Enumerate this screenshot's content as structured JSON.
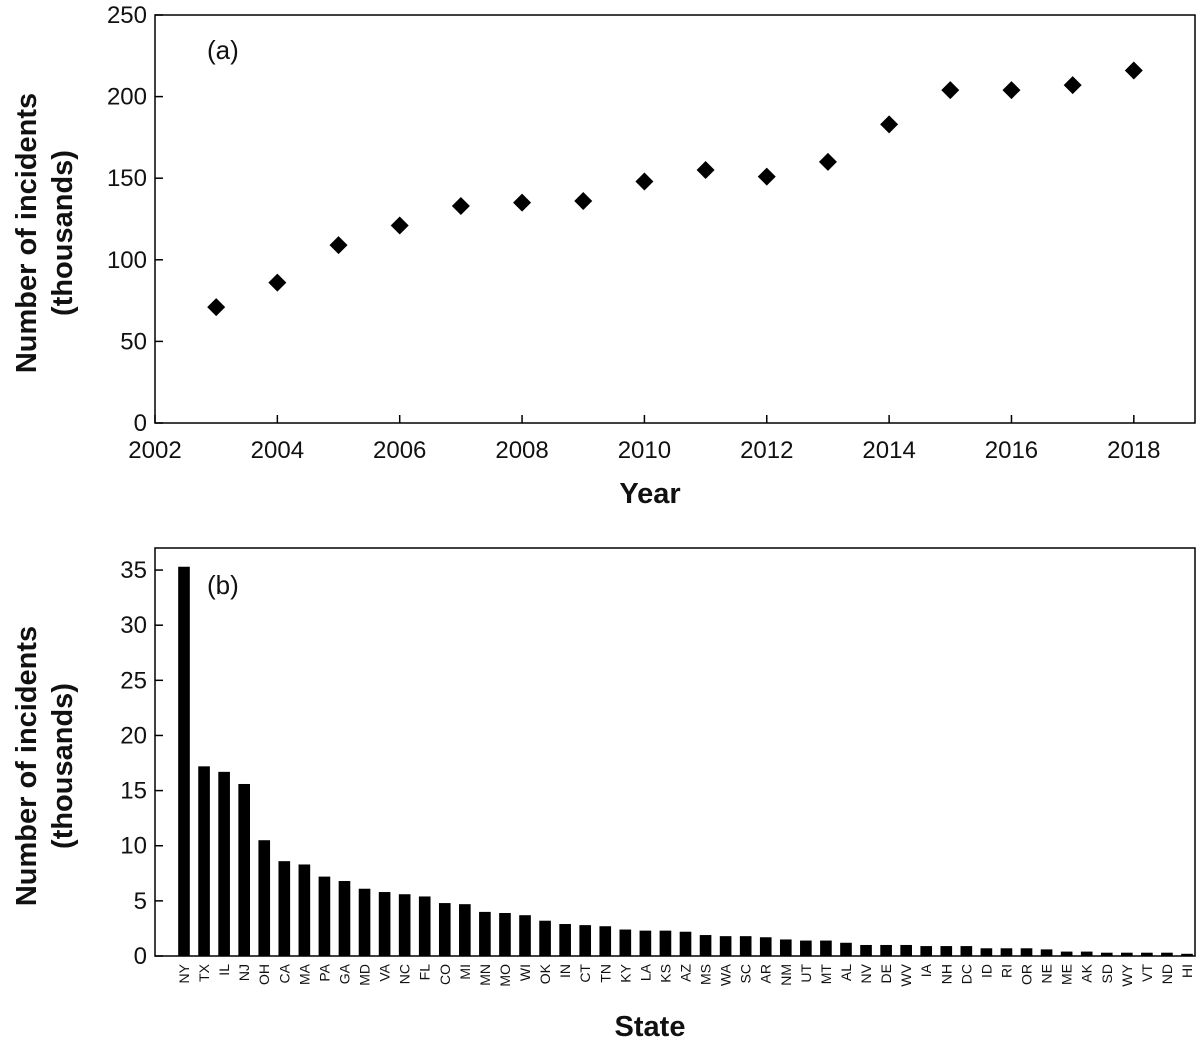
{
  "chart_data": [
    {
      "type": "scatter",
      "panel_label": "(a)",
      "xlabel": "Year",
      "ylabel": [
        "Number of incidents",
        "(thousands)"
      ],
      "xlim": [
        2002,
        2019
      ],
      "ylim": [
        0,
        250
      ],
      "xticks": [
        2002,
        2004,
        2006,
        2008,
        2010,
        2012,
        2014,
        2016,
        2018
      ],
      "yticks": [
        0,
        50,
        100,
        150,
        200,
        250
      ],
      "marker": "diamond",
      "color": "#000000",
      "grid": false,
      "x": [
        2003,
        2004,
        2005,
        2006,
        2007,
        2008,
        2009,
        2010,
        2011,
        2012,
        2013,
        2014,
        2015,
        2016,
        2017,
        2018
      ],
      "y": [
        71,
        86,
        109,
        121,
        133,
        135,
        136,
        148,
        155,
        151,
        160,
        183,
        204,
        204,
        207,
        216
      ]
    },
    {
      "type": "bar",
      "panel_label": "(b)",
      "xlabel": "State",
      "ylabel": [
        "Number of incidents",
        "(thousands)"
      ],
      "ylim": [
        0,
        37
      ],
      "yticks": [
        0,
        5,
        10,
        15,
        20,
        25,
        30,
        35
      ],
      "color": "#000000",
      "grid": false,
      "categories": [
        "NY",
        "TX",
        "IL",
        "NJ",
        "OH",
        "CA",
        "MA",
        "PA",
        "GA",
        "MD",
        "VA",
        "NC",
        "FL",
        "CO",
        "MI",
        "MN",
        "MO",
        "WI",
        "OK",
        "IN",
        "CT",
        "TN",
        "KY",
        "LA",
        "KS",
        "AZ",
        "MS",
        "WA",
        "SC",
        "AR",
        "NM",
        "UT",
        "MT",
        "AL",
        "NV",
        "DE",
        "WV",
        "IA",
        "NH",
        "DC",
        "ID",
        "RI",
        "OR",
        "NE",
        "ME",
        "AK",
        "SD",
        "WY",
        "VT",
        "ND",
        "HI"
      ],
      "values": [
        35.3,
        17.2,
        16.7,
        15.6,
        10.5,
        8.6,
        8.3,
        7.2,
        6.8,
        6.1,
        5.8,
        5.6,
        5.4,
        4.8,
        4.7,
        4.0,
        3.9,
        3.7,
        3.2,
        2.9,
        2.8,
        2.7,
        2.4,
        2.3,
        2.3,
        2.2,
        1.9,
        1.8,
        1.8,
        1.7,
        1.5,
        1.4,
        1.4,
        1.2,
        1.0,
        1.0,
        1.0,
        0.9,
        0.9,
        0.9,
        0.7,
        0.7,
        0.7,
        0.6,
        0.4,
        0.4,
        0.3,
        0.3,
        0.3,
        0.3,
        0.2
      ]
    }
  ]
}
